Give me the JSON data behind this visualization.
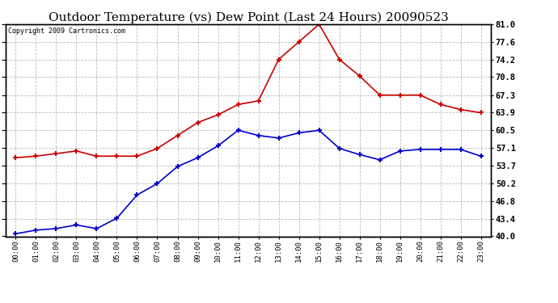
{
  "title": "Outdoor Temperature (vs) Dew Point (Last 24 Hours) 20090523",
  "copyright": "Copyright 2009 Cartronics.com",
  "x_labels": [
    "00:00",
    "01:00",
    "02:00",
    "03:00",
    "04:00",
    "05:00",
    "06:00",
    "07:00",
    "08:00",
    "09:00",
    "10:00",
    "11:00",
    "12:00",
    "13:00",
    "14:00",
    "15:00",
    "16:00",
    "17:00",
    "18:00",
    "19:00",
    "20:00",
    "21:00",
    "22:00",
    "23:00"
  ],
  "temp_data": [
    40.5,
    41.2,
    41.5,
    42.2,
    41.5,
    43.5,
    48.0,
    50.2,
    53.5,
    55.2,
    57.5,
    60.5,
    59.5,
    59.0,
    60.0,
    60.5,
    57.0,
    55.8,
    54.8,
    56.5,
    56.8,
    56.8,
    56.8,
    55.5
  ],
  "dew_data": [
    55.2,
    55.5,
    56.0,
    56.5,
    55.5,
    55.5,
    55.5,
    57.0,
    59.5,
    62.0,
    63.5,
    65.5,
    66.2,
    74.2,
    77.6,
    81.0,
    74.2,
    71.0,
    67.3,
    67.3,
    67.3,
    65.5,
    64.5,
    63.9
  ],
  "temp_color": "#0000cc",
  "dew_color": "#cc0000",
  "ylim": [
    40.0,
    81.0
  ],
  "yticks": [
    40.0,
    43.4,
    46.8,
    50.2,
    53.7,
    57.1,
    60.5,
    63.9,
    67.3,
    70.8,
    74.2,
    77.6,
    81.0
  ],
  "bg_color": "#ffffff",
  "grid_color": "#aaaaaa",
  "title_fontsize": 11,
  "marker": "+",
  "markersize": 5,
  "linewidth": 1.2
}
